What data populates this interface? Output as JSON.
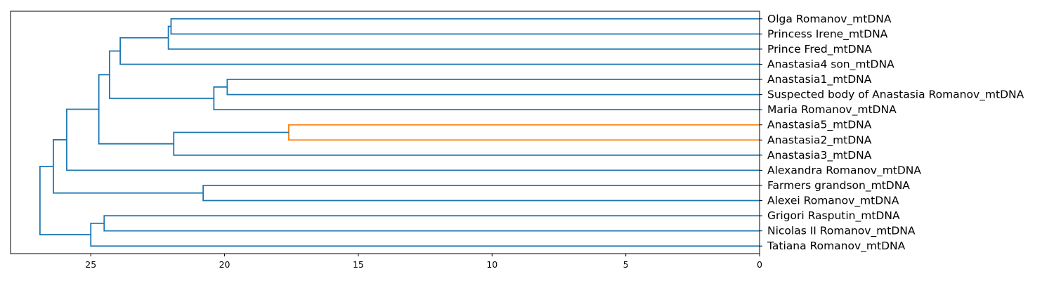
{
  "chart_data": {
    "type": "dendrogram",
    "orientation": "left",
    "title": "",
    "xlabel": "",
    "ylabel": "",
    "xlim": [
      28,
      0
    ],
    "x_ticks": [
      {
        "value": 25,
        "label": "25"
      },
      {
        "value": 20,
        "label": "20"
      },
      {
        "value": 15,
        "label": "15"
      },
      {
        "value": 10,
        "label": "10"
      },
      {
        "value": 5,
        "label": "5"
      },
      {
        "value": 0,
        "label": "0"
      }
    ],
    "grid": false,
    "colors": {
      "above_threshold": "#1f77b4",
      "cluster": "#ff7f0e"
    },
    "leaves": [
      "Olga Romanov_mtDNA",
      "Princess Irene_mtDNA",
      "Prince Fred_mtDNA",
      "Anastasia4 son_mtDNA",
      "Anastasia1_mtDNA",
      "Suspected body of Anastasia Romanov_mtDNA",
      "Maria Romanov_mtDNA",
      "Anastasia5_mtDNA",
      "Anastasia2_mtDNA",
      "Anastasia3_mtDNA",
      "Alexandra Romanov_mtDNA",
      "Farmers grandson_mtDNA",
      "Alexei Romanov_mtDNA",
      "Grigori Rasputin_mtDNA",
      "Nicolas II Romanov_mtDNA",
      "Tatiana Romanov_mtDNA"
    ],
    "merges": [
      {
        "id": "m1",
        "left": 0,
        "right": 1,
        "distance": 22.0,
        "color": "above_threshold"
      },
      {
        "id": "m2",
        "left": "m1",
        "right": 2,
        "distance": 22.1,
        "color": "above_threshold"
      },
      {
        "id": "m3",
        "left": "m2",
        "right": 3,
        "distance": 23.9,
        "color": "above_threshold"
      },
      {
        "id": "m4",
        "left": 4,
        "right": 5,
        "distance": 19.9,
        "color": "above_threshold"
      },
      {
        "id": "m5",
        "left": "m4",
        "right": 6,
        "distance": 20.4,
        "color": "above_threshold"
      },
      {
        "id": "m6",
        "left": "m3",
        "right": "m5",
        "distance": 24.3,
        "color": "above_threshold"
      },
      {
        "id": "m7",
        "left": 7,
        "right": 8,
        "distance": 17.6,
        "color": "cluster"
      },
      {
        "id": "m8",
        "left": "m7",
        "right": 9,
        "distance": 21.9,
        "color": "above_threshold"
      },
      {
        "id": "m9",
        "left": "m6",
        "right": "m8",
        "distance": 24.7,
        "color": "above_threshold"
      },
      {
        "id": "m10",
        "left": "m9",
        "right": 10,
        "distance": 25.9,
        "color": "above_threshold"
      },
      {
        "id": "m11",
        "left": 11,
        "right": 12,
        "distance": 20.8,
        "color": "above_threshold"
      },
      {
        "id": "m12",
        "left": "m10",
        "right": "m11",
        "distance": 26.4,
        "color": "above_threshold"
      },
      {
        "id": "m13",
        "left": 13,
        "right": 14,
        "distance": 24.5,
        "color": "above_threshold"
      },
      {
        "id": "m14",
        "left": "m13",
        "right": 15,
        "distance": 25.0,
        "color": "above_threshold"
      },
      {
        "id": "m15",
        "left": "m12",
        "right": "m14",
        "distance": 26.9,
        "color": "above_threshold"
      }
    ]
  }
}
